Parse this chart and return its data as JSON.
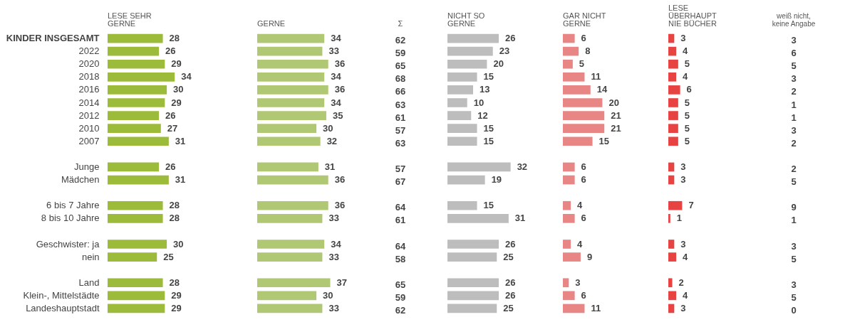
{
  "chart_data": [
    {
      "type": "bar",
      "orientation": "horizontal",
      "title": "LESE SEHR GERNE",
      "categories": [
        "KINDER INSGESAMT",
        "2022",
        "2020",
        "2018",
        "2016",
        "2014",
        "2012",
        "2010",
        "2007",
        null,
        "Junge",
        "Mädchen",
        null,
        "6 bis 7 Jahre",
        "8 bis 10 Jahre",
        null,
        "Geschwister: ja",
        "nein",
        null,
        "Land",
        "Klein-, Mittelstädte",
        "Landeshauptstadt"
      ],
      "values": [
        28,
        26,
        29,
        34,
        30,
        29,
        26,
        27,
        31,
        null,
        26,
        31,
        null,
        28,
        28,
        null,
        30,
        25,
        null,
        28,
        29,
        29
      ],
      "color": "#9cbb3a",
      "data_labels": true,
      "tick_labels": "y"
    },
    {
      "type": "bar",
      "orientation": "horizontal",
      "title": "GERNE",
      "categories": [
        null,
        null,
        null,
        null,
        null,
        null,
        null,
        null,
        null,
        null,
        null,
        null,
        null,
        null,
        null,
        null,
        null,
        null,
        null,
        null,
        null,
        null
      ],
      "values": [
        34,
        33,
        36,
        34,
        36,
        34,
        35,
        30,
        32,
        null,
        31,
        36,
        null,
        36,
        33,
        null,
        34,
        33,
        null,
        37,
        30,
        33
      ],
      "color": "#b0c774",
      "data_labels": true,
      "tick_labels": false
    },
    {
      "type": "other",
      "title": "Σ",
      "annotations": [
        "62",
        "59",
        "65",
        "68",
        "66",
        "63",
        "61",
        "57",
        "63",
        "57",
        "67",
        "64",
        "61",
        "64",
        "58",
        "65",
        "59",
        "62"
      ]
    },
    {
      "type": "bar",
      "orientation": "horizontal",
      "title": "NICHT SO GERNE",
      "categories": [
        null,
        null,
        null,
        null,
        null,
        null,
        null,
        null,
        null,
        null,
        null,
        null,
        null,
        null,
        null,
        null,
        null,
        null,
        null,
        null,
        null,
        null
      ],
      "values": [
        26,
        23,
        20,
        15,
        13,
        10,
        12,
        15,
        15,
        null,
        32,
        19,
        null,
        15,
        31,
        null,
        26,
        25,
        null,
        26,
        26,
        25
      ],
      "color": "#bdbdbd",
      "data_labels": true,
      "tick_labels": false
    },
    {
      "type": "bar",
      "orientation": "horizontal",
      "title": "GAR NICHT GERNE",
      "categories": [
        null,
        null,
        null,
        null,
        null,
        null,
        null,
        null,
        null,
        null,
        null,
        null,
        null,
        null,
        null,
        null,
        null,
        null,
        null,
        null,
        null,
        null
      ],
      "values": [
        6,
        8,
        5,
        11,
        14,
        20,
        21,
        21,
        15,
        null,
        6,
        6,
        null,
        4,
        6,
        null,
        4,
        9,
        null,
        3,
        6,
        11
      ],
      "color": "#e88585",
      "data_labels": true,
      "tick_labels": false
    },
    {
      "type": "bar",
      "orientation": "horizontal",
      "title": "LESE ÜBERHAUPT NIE BÜCHER",
      "categories": [
        null,
        null,
        null,
        null,
        null,
        null,
        null,
        null,
        null,
        null,
        null,
        null,
        null,
        null,
        null,
        null,
        null,
        null,
        null,
        null,
        null,
        null
      ],
      "values": [
        3,
        4,
        5,
        4,
        6,
        5,
        5,
        5,
        5,
        null,
        3,
        3,
        null,
        7,
        1,
        null,
        3,
        4,
        null,
        2,
        4,
        3
      ],
      "color": "#e84343",
      "data_labels": true,
      "tick_labels": false
    },
    {
      "type": "other",
      "title": "weiß nicht, keine Angabe",
      "annotations": [
        "3",
        "6",
        "5",
        "3",
        "2",
        "1",
        "1",
        "3",
        "2",
        "2",
        "5",
        "9",
        "1",
        "3",
        "5",
        "3",
        "5",
        "0"
      ]
    }
  ]
}
